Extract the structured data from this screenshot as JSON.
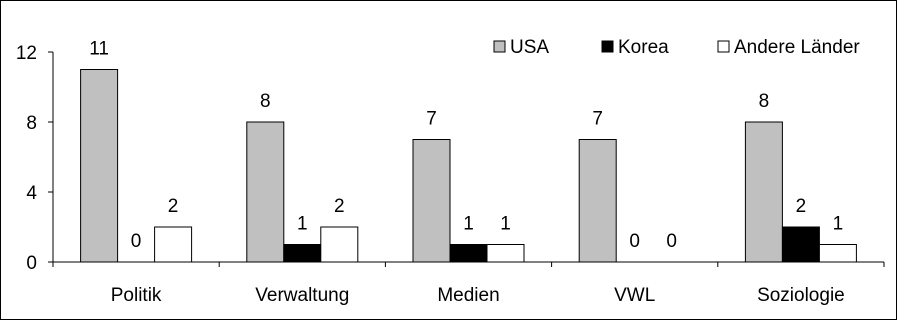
{
  "chart_data": {
    "type": "bar",
    "categories": [
      "Politik",
      "Verwaltung",
      "Medien",
      "VWL",
      "Soziologie"
    ],
    "series": [
      {
        "name": "USA",
        "values": [
          11,
          8,
          7,
          7,
          8
        ],
        "color": "#c0c0c0"
      },
      {
        "name": "Korea",
        "values": [
          0,
          1,
          1,
          0,
          2
        ],
        "color": "#000000"
      },
      {
        "name": "Andere Länder",
        "values": [
          2,
          2,
          1,
          0,
          1
        ],
        "color": "#ffffff"
      }
    ],
    "ylim": [
      0,
      12
    ],
    "yticks": [
      "0",
      "4",
      "8",
      "12"
    ],
    "data_labels": [
      [
        "11",
        "8",
        "7",
        "7",
        "8"
      ],
      [
        "0",
        "1",
        "1",
        "0",
        "2"
      ],
      [
        "2",
        "2",
        "1",
        "0",
        "1"
      ]
    ],
    "grid": false,
    "legend_position": "top-right",
    "title": "",
    "xlabel": "",
    "ylabel": ""
  }
}
